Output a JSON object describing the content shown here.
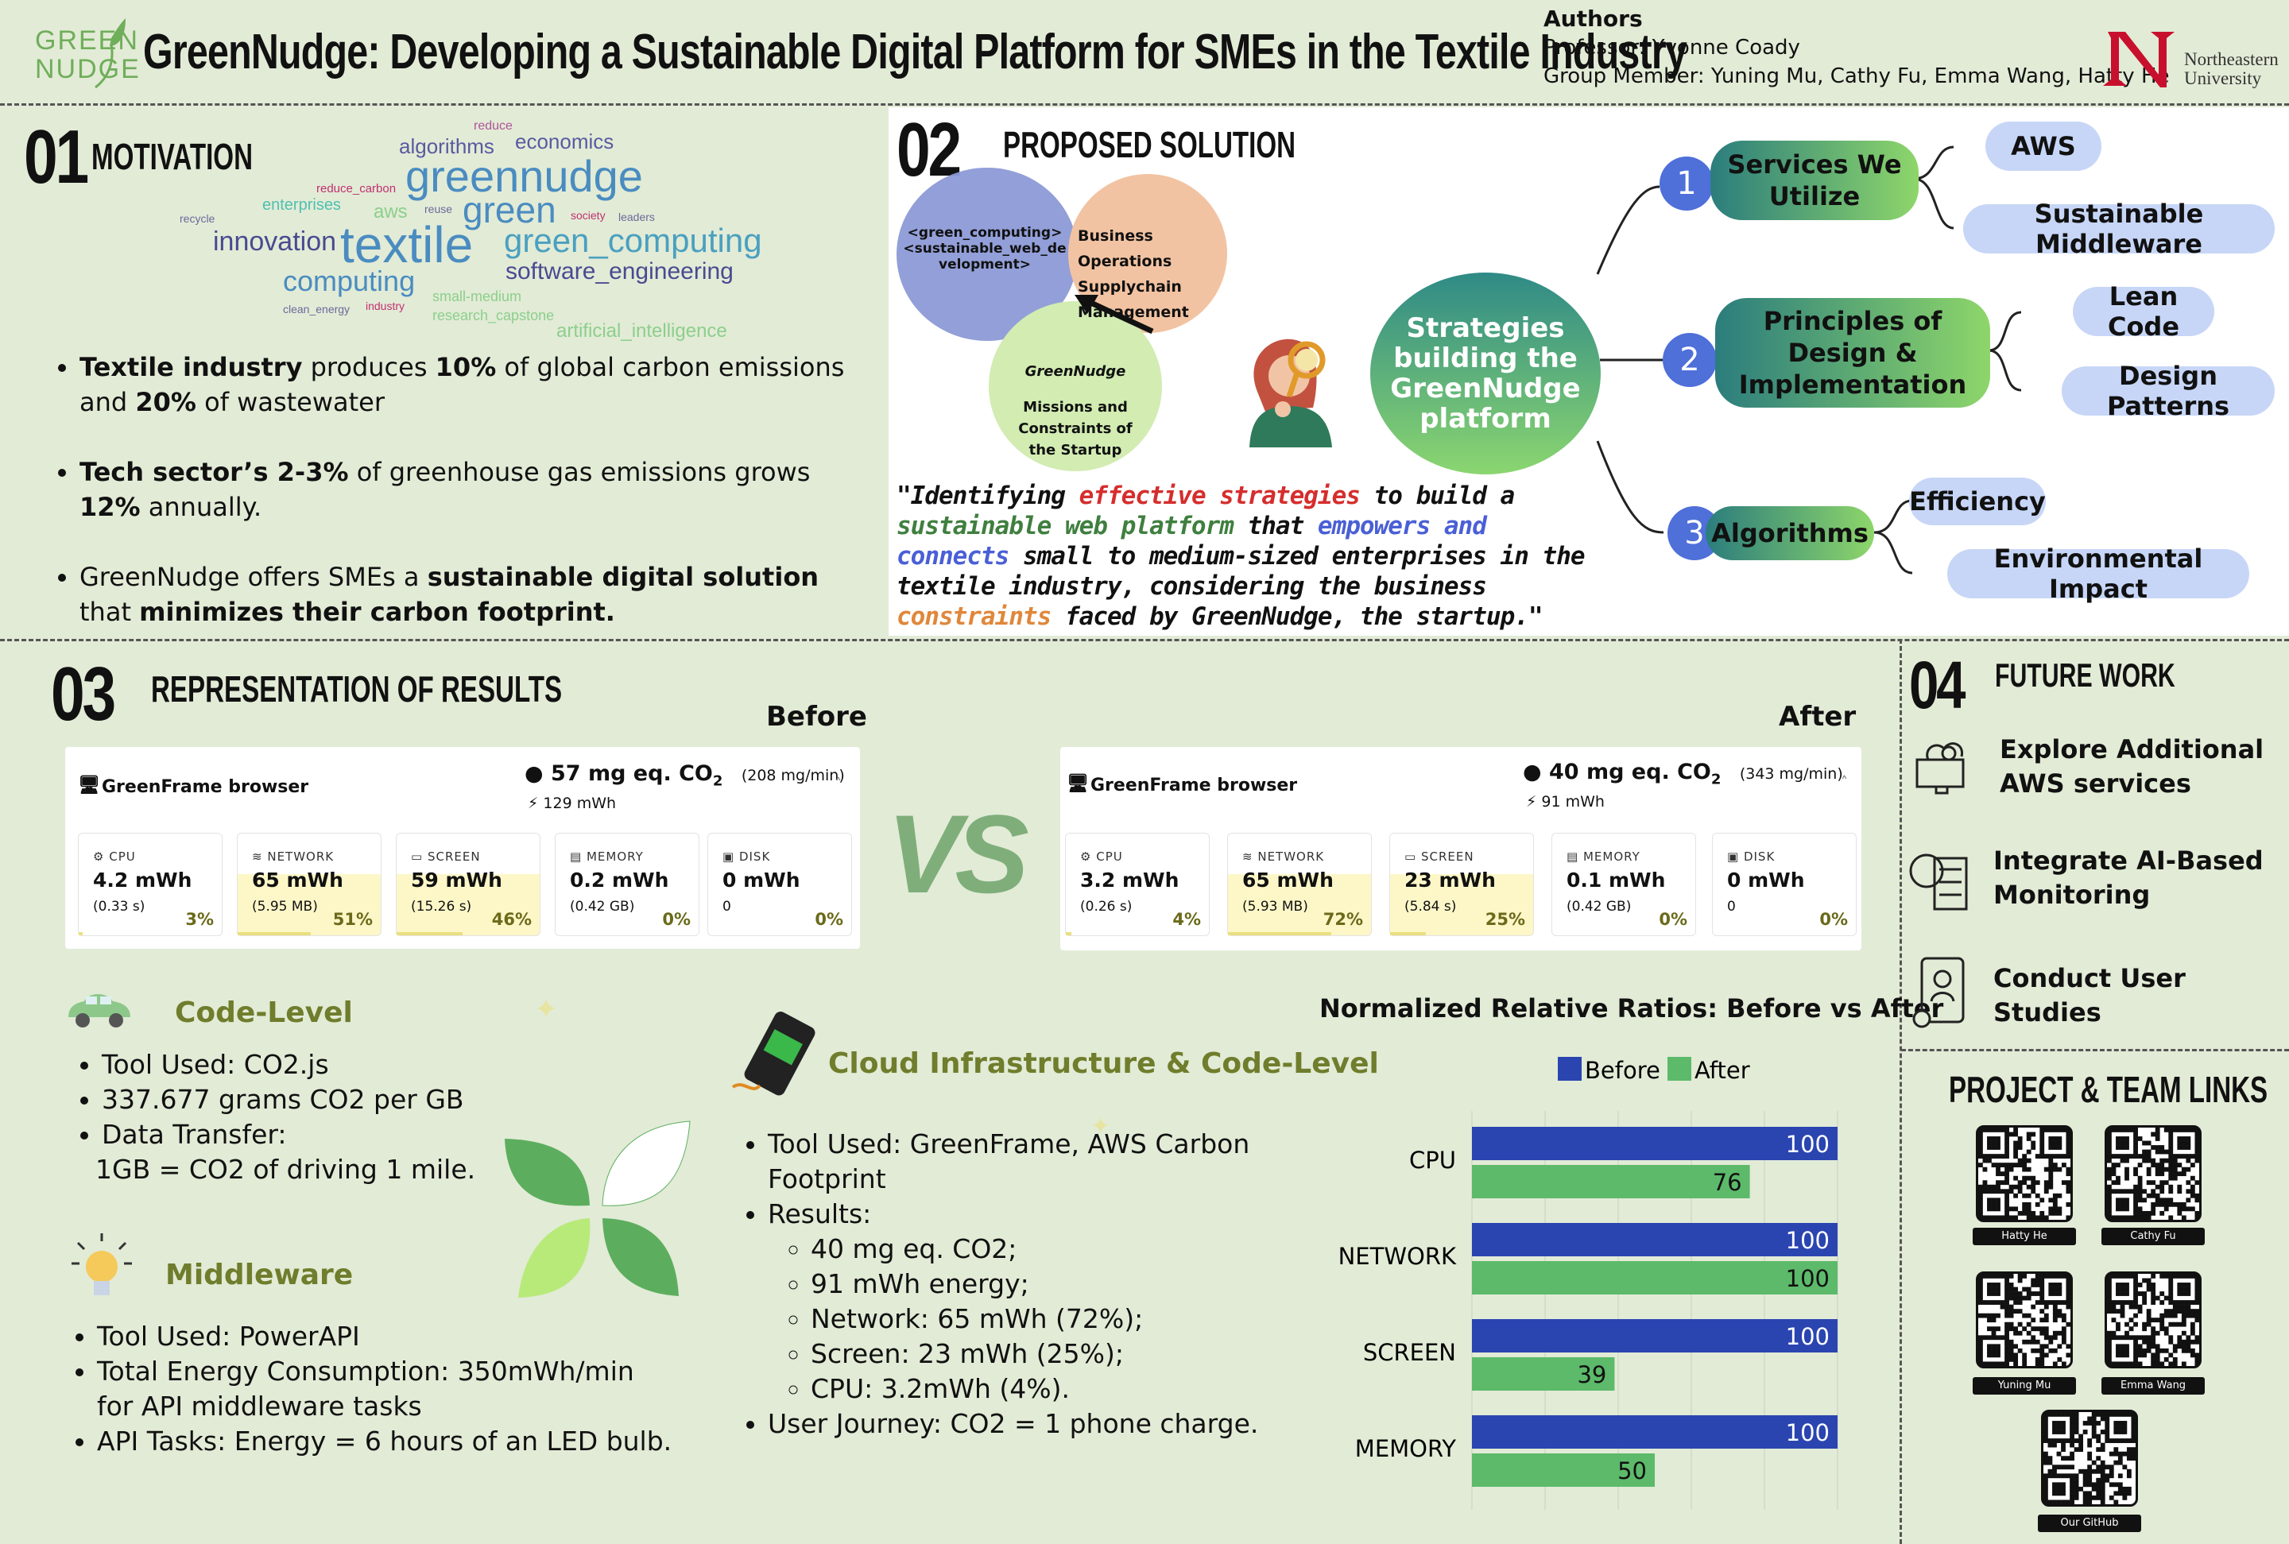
{
  "header": {
    "logo_text": [
      "GREEN",
      "NUDGE"
    ],
    "title": "GreenNudge: Developing a Sustainable Digital Platform for SMEs in the Textile Industry",
    "authors_label": "Authors",
    "professor": "Professor: Yvonne Coady",
    "members": "Group Member: Yuning Mu, Cathy Fu, Emma Wang, Hatty He",
    "university": [
      "Northeastern",
      "University"
    ]
  },
  "motivation": {
    "num": "01",
    "heading": "MOTIVATION",
    "wordcloud": [
      "reduce",
      "algorithms",
      "economics",
      "greennudge",
      "enterprises",
      "reduce_carbon",
      "recycle",
      "aws",
      "reuse",
      "green",
      "society",
      "leaders",
      "innovation",
      "textile",
      "green_computing",
      "computing",
      "software_engineering",
      "small-medium",
      "clean_energy",
      "industry",
      "research_capstone",
      "artificial_intelligence"
    ],
    "bullets": [
      {
        "b1": "Textile industry",
        "t1": " produces ",
        "b2": "10%",
        "t2": " of global carbon emissions and ",
        "b3": "20%",
        "t3": " of wastewater"
      },
      {
        "b1": "Tech sector’s 2-3%",
        "t1": " of greenhouse gas emissions grows ",
        "b2": "12%",
        "t2": " annually.",
        "b3": "",
        "t3": ""
      },
      {
        "b1": "",
        "t1": "GreenNudge offers SMEs a ",
        "b2": "sustainable digital solution",
        "t2": " that ",
        "b3": "minimizes their carbon footprint.",
        "t3": ""
      }
    ]
  },
  "solution": {
    "num": "02",
    "heading": "PROPOSED SOLUTION",
    "venn": {
      "blue": "<green_computing>\n<sustainable_web_development>",
      "orange": "Business Operations\nSupplychain Management",
      "green_title": "GreenNudge",
      "green_body": "Missions and Constraints of the Startup"
    },
    "quote": [
      {
        "t": "\"Identifying ",
        "c": "#111"
      },
      {
        "t": "effective strategies",
        "c": "#d62d2d"
      },
      {
        "t": " to build a ",
        "c": "#111"
      },
      {
        "t": "sustainable web platform",
        "c": "#3f7f3f"
      },
      {
        "t": " that ",
        "c": "#111"
      },
      {
        "t": "empowers and connects",
        "c": "#4a5fd6"
      },
      {
        "t": " small to medium-sized enterprises in the textile industry, considering the business ",
        "c": "#111"
      },
      {
        "t": "constraints",
        "c": "#e0873a"
      },
      {
        "t": " faced by GreenNudge, the startup.\"",
        "c": "#111"
      }
    ],
    "center": "Strategies\nbuilding the\nGreenNudge\nplatform",
    "branches": [
      {
        "n": "1",
        "label": "Services We\nUtilize",
        "leaves": [
          "AWS",
          "Sustainable Middleware"
        ]
      },
      {
        "n": "2",
        "label": "Principles of\nDesign &\nImplementation",
        "leaves": [
          "Lean Code",
          "Design Patterns"
        ]
      },
      {
        "n": "3",
        "label": "Algorithms",
        "leaves": [
          "Efficiency",
          "Environmental Impact"
        ]
      }
    ]
  },
  "results": {
    "num": "03",
    "heading": "REPRESENTATION OF RESULTS",
    "before_label": "Before",
    "after_label": "After",
    "vs": "VS",
    "before": {
      "browser": "GreenFrame browser",
      "co2": "57 mg eq. CO",
      "co2_sub": "2",
      "rate": "(208 mg/min)",
      "energy": "129 mWh",
      "metrics": [
        {
          "label": "CPU",
          "value": "4.2 mWh",
          "sub": "(0.33 s)",
          "pct": "3%",
          "frac": 0.03
        },
        {
          "label": "NETWORK",
          "value": "65 mWh",
          "sub": "(5.95 MB)",
          "pct": "51%",
          "frac": 0.51
        },
        {
          "label": "SCREEN",
          "value": "59 mWh",
          "sub": "(15.26 s)",
          "pct": "46%",
          "frac": 0.46
        },
        {
          "label": "MEMORY",
          "value": "0.2 mWh",
          "sub": "(0.42 GB)",
          "pct": "0%",
          "frac": 0
        },
        {
          "label": "DISK",
          "value": "0 mWh",
          "sub": "0",
          "pct": "0%",
          "frac": 0
        }
      ]
    },
    "after": {
      "browser": "GreenFrame browser",
      "co2": "40 mg eq. CO",
      "co2_sub": "2",
      "rate": "(343 mg/min)",
      "energy": "91 mWh",
      "metrics": [
        {
          "label": "CPU",
          "value": "3.2 mWh",
          "sub": "(0.26 s)",
          "pct": "4%",
          "frac": 0.04
        },
        {
          "label": "NETWORK",
          "value": "65 mWh",
          "sub": "(5.93 MB)",
          "pct": "72%",
          "frac": 0.72
        },
        {
          "label": "SCREEN",
          "value": "23 mWh",
          "sub": "(5.84 s)",
          "pct": "25%",
          "frac": 0.25
        },
        {
          "label": "MEMORY",
          "value": "0.1 mWh",
          "sub": "(0.42 GB)",
          "pct": "0%",
          "frac": 0
        },
        {
          "label": "DISK",
          "value": "0 mWh",
          "sub": "0",
          "pct": "0%",
          "frac": 0
        }
      ]
    },
    "code_level": {
      "title": "Code-Level",
      "items": [
        "Tool Used: CO2.js",
        "337.677 grams CO2 per GB",
        "Data Transfer:",
        "1GB = CO2 of driving 1 mile."
      ]
    },
    "middleware": {
      "title": "Middleware",
      "items": [
        "Tool Used: PowerAPI",
        "Total Energy Consumption: 350mWh/min",
        "for API middleware tasks",
        "API Tasks: Energy = 6 hours of an LED bulb."
      ]
    },
    "cloud": {
      "title": "Cloud Infrastructure & Code-Level",
      "items": [
        "Tool Used: GreenFrame, AWS Carbon",
        "Footprint",
        "Results:"
      ],
      "sub_items": [
        "40 mg eq. CO2;",
        "91 mWh energy;",
        "Network: 65 mWh (72%);",
        "Screen: 23 mWh (25%);",
        "CPU: 3.2mWh (4%)."
      ],
      "last": "User Journey: CO2 = 1 phone charge."
    }
  },
  "chart_data": {
    "type": "bar",
    "title": "Normalized Relative Ratios: Before vs After",
    "categories": [
      "CPU",
      "NETWORK",
      "SCREEN",
      "MEMORY"
    ],
    "series": [
      {
        "name": "Before",
        "values": [
          100,
          100,
          100,
          100
        ],
        "color": "#2a45b0"
      },
      {
        "name": "After",
        "values": [
          76,
          100,
          39,
          50
        ],
        "color": "#5cba6a"
      }
    ],
    "xlim": [
      0,
      100
    ],
    "xticks": [
      "0",
      "20",
      "40",
      "60",
      "80",
      "100"
    ],
    "x_unit": "%",
    "orientation": "horizontal",
    "legend": "top",
    "grid": true
  },
  "future": {
    "num": "04",
    "heading": "FUTURE WORK",
    "items": [
      "Explore Additional\nAWS services",
      "Integrate AI-Based\nMonitoring",
      "Conduct User Studies"
    ],
    "links_heading": "PROJECT & TEAM LINKS",
    "links": [
      "Hatty He",
      "Cathy Fu",
      "Yuning Mu",
      "Emma Wang",
      "Our GitHub"
    ]
  }
}
